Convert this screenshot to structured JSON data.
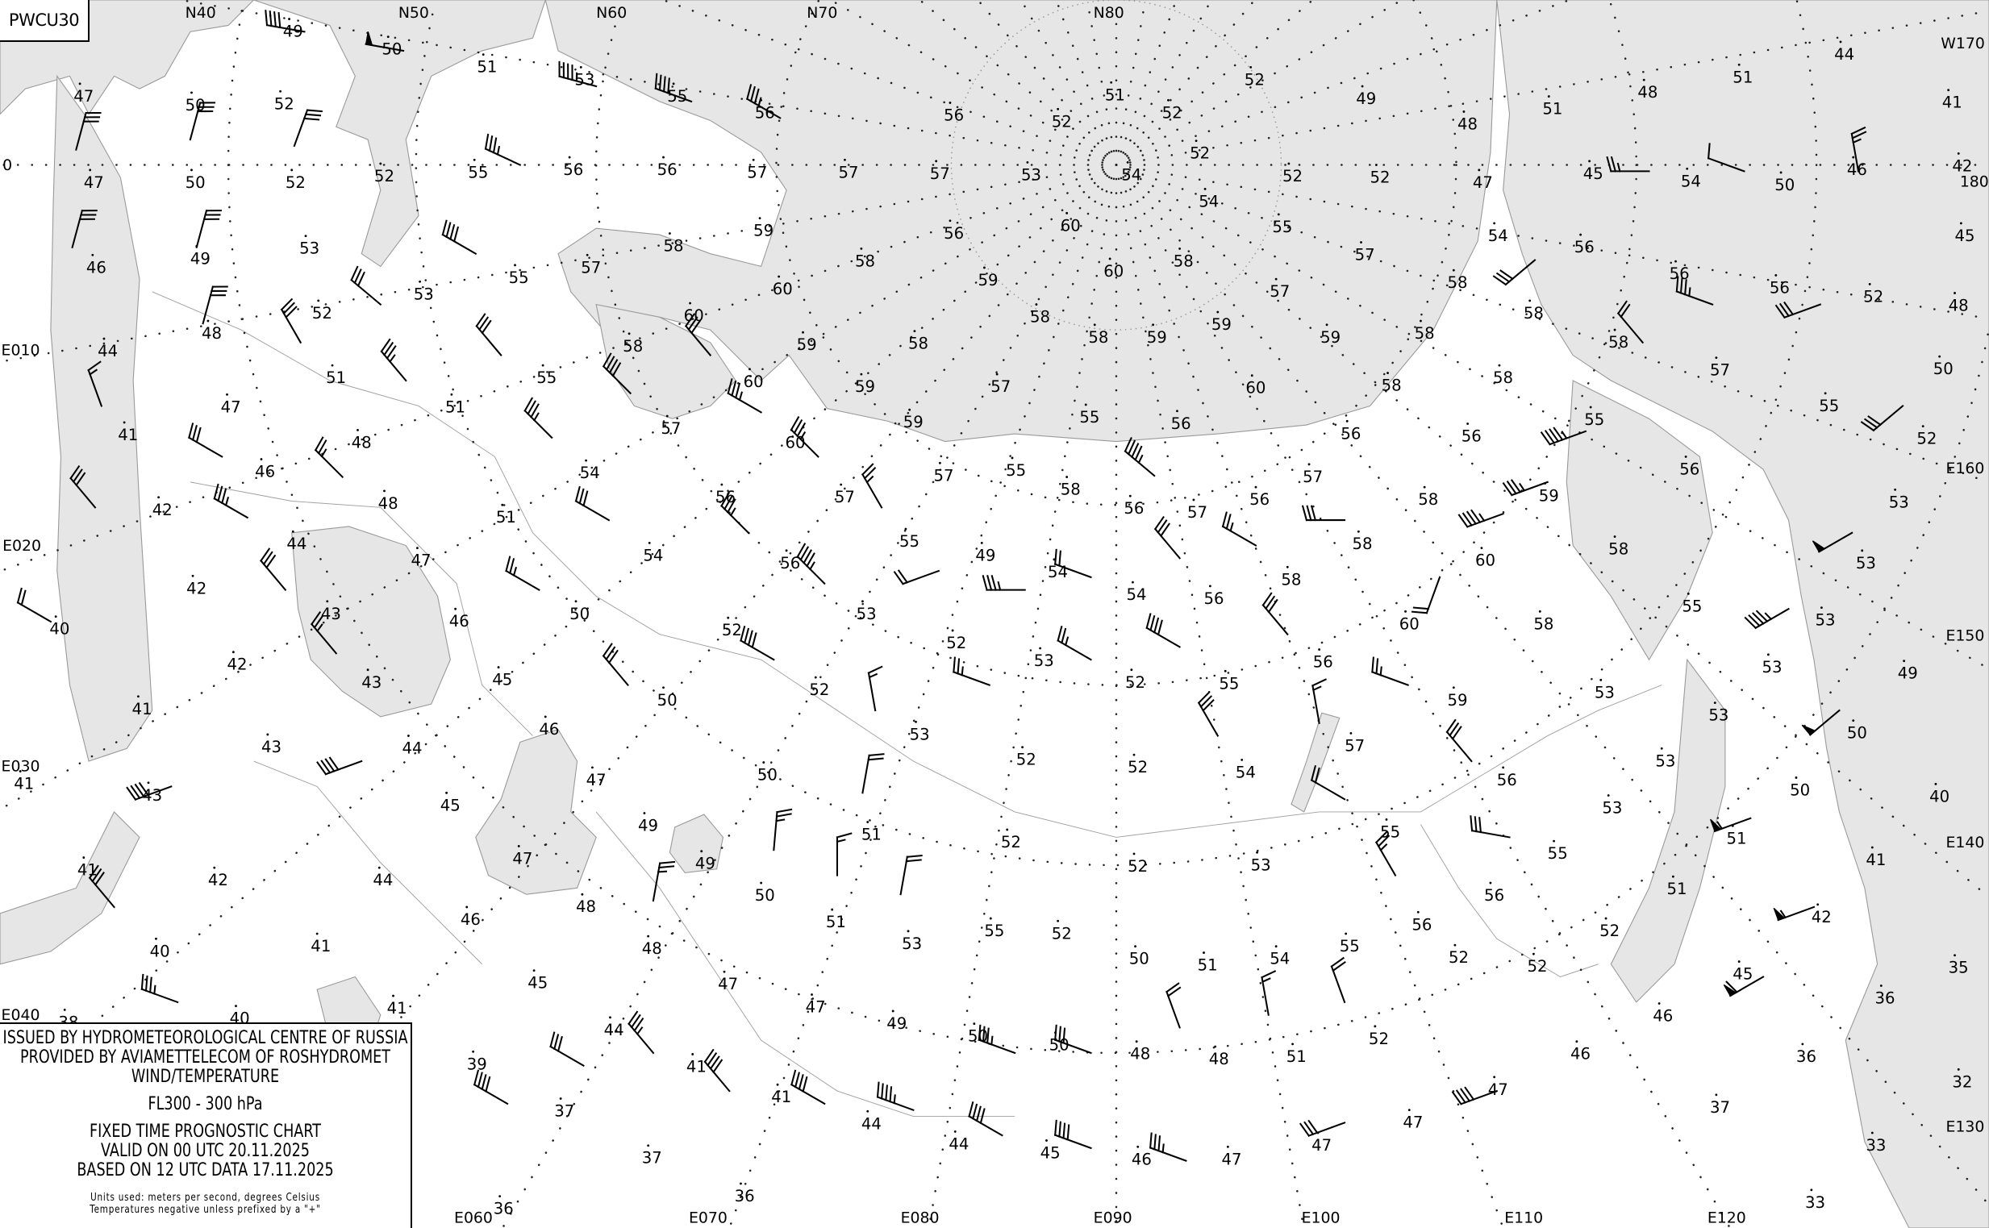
{
  "chart_id": "PWCU30",
  "legend": {
    "line1": "ISSUED BY HYDROMETEOROLOGICAL CENTRE OF RUSSIA",
    "line2": "PROVIDED BY AVIAMETTELECOM OF ROSHYDROMET",
    "line3": "WIND/TEMPERATURE",
    "level": "FL300 - 300 hPa",
    "chart_type": "FIXED TIME PROGNOSTIC CHART",
    "valid": "VALID ON 00 UTC 20.11.2025",
    "based": "BASED ON 12 UTC DATA 17.11.2025",
    "units": "Units used: meters per second, degrees Celsius",
    "note": "Temperatures negative unless prefixed by a \"+\""
  },
  "colors": {
    "water": "#e6e6e6",
    "land": "#ffffff",
    "coastline": "#9a9a9a",
    "ink": "#000000"
  },
  "latitude_labels": [
    "N40",
    "N50",
    "N60",
    "N70",
    "N80"
  ],
  "longitude_labels": [
    "0",
    "E010",
    "E020",
    "E030",
    "E040",
    "E060",
    "E070",
    "E080",
    "E090",
    "E100",
    "E110",
    "E120",
    "E130",
    "E140",
    "E150",
    "E160",
    "W170",
    "180"
  ],
  "temperatures": [
    49,
    50,
    51,
    53,
    55,
    56,
    57,
    57,
    57,
    56,
    52,
    51,
    52,
    52,
    52,
    49,
    48,
    51,
    48,
    51,
    44,
    41,
    42,
    45,
    48,
    50,
    52,
    53,
    53,
    53,
    49,
    50,
    50,
    40,
    51,
    41,
    42,
    35,
    45,
    36,
    36,
    32,
    37,
    33,
    33,
    47,
    50,
    52,
    47,
    50,
    52,
    52,
    55,
    56,
    56,
    53,
    46,
    49,
    55,
    57,
    58,
    59,
    58,
    53,
    52,
    48,
    44,
    58,
    60,
    59,
    60,
    51,
    55,
    60,
    59,
    58,
    57,
    47,
    51,
    57,
    59,
    60,
    41,
    48,
    55,
    56,
    60,
    59,
    58,
    58,
    59,
    58,
    59,
    56,
    60,
    60,
    54,
    54,
    53,
    57,
    55,
    57,
    52,
    52,
    47,
    45,
    54,
    50,
    46,
    54,
    56,
    56,
    56,
    52,
    58,
    58,
    58,
    57,
    58,
    59,
    58,
    58,
    55,
    55,
    56,
    56,
    57,
    56,
    59,
    58,
    58,
    58,
    60,
    60,
    58,
    56,
    57,
    56,
    58,
    55,
    57,
    57,
    56,
    54,
    46,
    42,
    51,
    48,
    44,
    47,
    42,
    43,
    46,
    40,
    42,
    45,
    43,
    41,
    46,
    43,
    44,
    47,
    45,
    43,
    41,
    41,
    42,
    44,
    46,
    40,
    41,
    45,
    40,
    41,
    44,
    41,
    39,
    37,
    41,
    37,
    36,
    36,
    44,
    44,
    45,
    46,
    47,
    47,
    47,
    47,
    46,
    46,
    49,
    50,
    50,
    48,
    48,
    51,
    52,
    52,
    52,
    47,
    47,
    48,
    53,
    55,
    52,
    50,
    51,
    54,
    55,
    56,
    56,
    55,
    51,
    52,
    53,
    52,
    52,
    51,
    49,
    50,
    51,
    48,
    47,
    49,
    50,
    52,
    52,
    53,
    50,
    52,
    53,
    52,
    53,
    52,
    50,
    54,
    56,
    55,
    49,
    54,
    54,
    56,
    55,
    56,
    58,
    59,
    57,
    56,
    54,
    55,
    53,
    53,
    53,
    53,
    55,
    53,
    52,
    38
  ],
  "wind_barbs": [
    {
      "dir": 15,
      "speed": 30
    },
    {
      "dir": 15,
      "speed": 30
    },
    {
      "dir": 15,
      "speed": 30
    },
    {
      "dir": 15,
      "speed": 30
    },
    {
      "dir": 15,
      "speed": 30
    },
    {
      "dir": 20,
      "speed": 30
    },
    {
      "dir": 340,
      "speed": 15
    },
    {
      "dir": 320,
      "speed": 30
    },
    {
      "dir": 300,
      "speed": 20
    },
    {
      "dir": 300,
      "speed": 30
    },
    {
      "dir": 300,
      "speed": 35
    },
    {
      "dir": 320,
      "speed": 30
    },
    {
      "dir": 320,
      "speed": 25
    },
    {
      "dir": 310,
      "speed": 30
    },
    {
      "dir": 320,
      "speed": 35
    },
    {
      "dir": 300,
      "speed": 40
    },
    {
      "dir": 330,
      "speed": 30
    },
    {
      "dir": 315,
      "speed": 25
    },
    {
      "dir": 315,
      "speed": 35
    },
    {
      "dir": 300,
      "speed": 30
    },
    {
      "dir": 300,
      "speed": 25
    },
    {
      "dir": 320,
      "speed": 30
    },
    {
      "dir": 315,
      "speed": 40
    },
    {
      "dir": 320,
      "speed": 30
    },
    {
      "dir": 300,
      "speed": 35
    },
    {
      "dir": 315,
      "speed": 35
    },
    {
      "dir": 315,
      "speed": 35
    },
    {
      "dir": 315,
      "speed": 45
    },
    {
      "dir": 330,
      "speed": 25
    },
    {
      "dir": 250,
      "speed": 20
    },
    {
      "dir": 270,
      "speed": 35
    },
    {
      "dir": 290,
      "speed": 20
    },
    {
      "dir": 310,
      "speed": 45
    },
    {
      "dir": 320,
      "speed": 30
    },
    {
      "dir": 300,
      "speed": 25
    },
    {
      "dir": 270,
      "speed": 30
    },
    {
      "dir": 200,
      "speed": 20
    },
    {
      "dir": 250,
      "speed": 45
    },
    {
      "dir": 250,
      "speed": 35
    },
    {
      "dir": 250,
      "speed": 45
    },
    {
      "dir": 320,
      "speed": 20
    },
    {
      "dir": 230,
      "speed": 30
    },
    {
      "dir": 270,
      "speed": 25
    },
    {
      "dir": 290,
      "speed": 10
    },
    {
      "dir": 350,
      "speed": 25
    },
    {
      "dir": 290,
      "speed": 35
    },
    {
      "dir": 250,
      "speed": 30
    },
    {
      "dir": 230,
      "speed": 30
    },
    {
      "dir": 240,
      "speed": 50
    },
    {
      "dir": 240,
      "speed": 45
    },
    {
      "dir": 230,
      "speed": 50
    },
    {
      "dir": 250,
      "speed": 55
    },
    {
      "dir": 250,
      "speed": 55
    },
    {
      "dir": 240,
      "speed": 60
    },
    {
      "dir": 250,
      "speed": 40
    },
    {
      "dir": 250,
      "speed": 30
    },
    {
      "dir": 290,
      "speed": 35
    },
    {
      "dir": 290,
      "speed": 40
    },
    {
      "dir": 300,
      "speed": 40
    },
    {
      "dir": 290,
      "speed": 45
    },
    {
      "dir": 300,
      "speed": 40
    },
    {
      "dir": 320,
      "speed": 40
    },
    {
      "dir": 320,
      "speed": 35
    },
    {
      "dir": 300,
      "speed": 30
    },
    {
      "dir": 300,
      "speed": 40
    },
    {
      "dir": 290,
      "speed": 35
    },
    {
      "dir": 320,
      "speed": 30
    },
    {
      "dir": 250,
      "speed": 40
    },
    {
      "dir": 250,
      "speed": 40
    },
    {
      "dir": 290,
      "speed": 35
    },
    {
      "dir": 290,
      "speed": 30
    },
    {
      "dir": 340,
      "speed": 20
    },
    {
      "dir": 350,
      "speed": 15
    },
    {
      "dir": 340,
      "speed": 20
    },
    {
      "dir": 330,
      "speed": 25
    },
    {
      "dir": 280,
      "speed": 30
    },
    {
      "dir": 320,
      "speed": 30
    },
    {
      "dir": 300,
      "speed": 20
    },
    {
      "dir": 330,
      "speed": 30
    },
    {
      "dir": 350,
      "speed": 15
    },
    {
      "dir": 290,
      "speed": 25
    },
    {
      "dir": 320,
      "speed": 30
    },
    {
      "dir": 300,
      "speed": 40
    },
    {
      "dir": 300,
      "speed": 25
    },
    {
      "dir": 290,
      "speed": 25
    },
    {
      "dir": 350,
      "speed": 15
    },
    {
      "dir": 300,
      "speed": 40
    },
    {
      "dir": 320,
      "speed": 30
    },
    {
      "dir": 10,
      "speed": 20
    },
    {
      "dir": 0,
      "speed": 15
    },
    {
      "dir": 10,
      "speed": 20
    },
    {
      "dir": 5,
      "speed": 25
    },
    {
      "dir": 10,
      "speed": 25
    },
    {
      "dir": 280,
      "speed": 40
    },
    {
      "dir": 280,
      "speed": 50
    },
    {
      "dir": 285,
      "speed": 45
    },
    {
      "dir": 290,
      "speed": 40
    },
    {
      "dir": 300,
      "speed": 35
    },
    {
      "dir": 295,
      "speed": 35
    }
  ]
}
